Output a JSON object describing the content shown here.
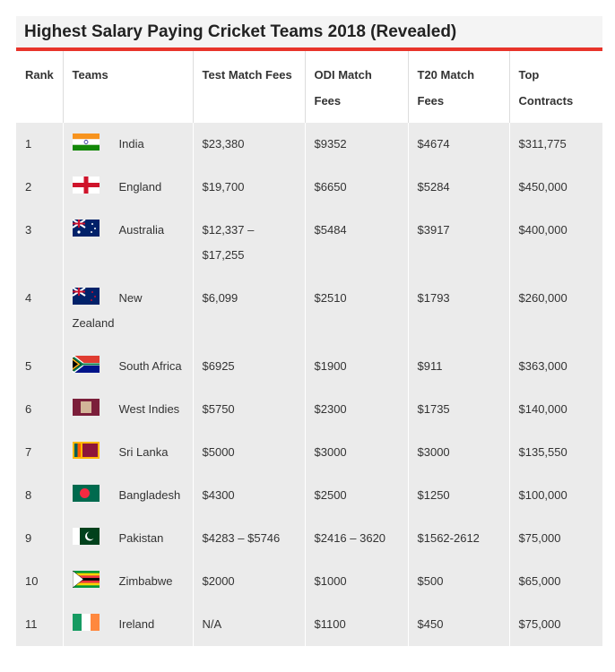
{
  "title": "Highest Salary Paying Cricket Teams 2018 (Revealed)",
  "table": {
    "headers": [
      "Rank",
      "Teams",
      "Test Match Fees",
      "ODI Match Fees",
      "T20 Match Fees",
      "Top Contracts"
    ],
    "rows": [
      [
        "1",
        "India",
        "$23,380",
        "$9352",
        "$4674",
        "$311,775"
      ],
      [
        "2",
        "England",
        "$19,700",
        "$6650",
        "$5284",
        "$450,000"
      ],
      [
        "3",
        "Australia",
        "$12,337 – $17,255",
        "$5484",
        "$3917",
        "$400,000"
      ],
      [
        "4",
        "New Zealand",
        "$6,099",
        "$2510",
        "$1793",
        "$260,000"
      ],
      [
        "5",
        "South Africa",
        "$6925",
        "$1900",
        "$911",
        "$363,000"
      ],
      [
        "6",
        "West Indies",
        "$5750",
        "$2300",
        "$1735",
        "$140,000"
      ],
      [
        "7",
        "Sri Lanka",
        "$5000",
        "$3000",
        "$3000",
        "$135,550"
      ],
      [
        "8",
        "Bangladesh",
        "$4300",
        "$2500",
        "$1250",
        "$100,000"
      ],
      [
        "9",
        "Pakistan",
        "$4283 – $5746",
        "$2416 – 3620",
        "$1562-2612",
        "$75,000"
      ],
      [
        "10",
        "Zimbabwe",
        "$2000",
        "$1000",
        "$500",
        "$65,000"
      ],
      [
        "11",
        "Ireland",
        "N/A",
        "$1100",
        "$450",
        "$75,000"
      ]
    ]
  }
}
